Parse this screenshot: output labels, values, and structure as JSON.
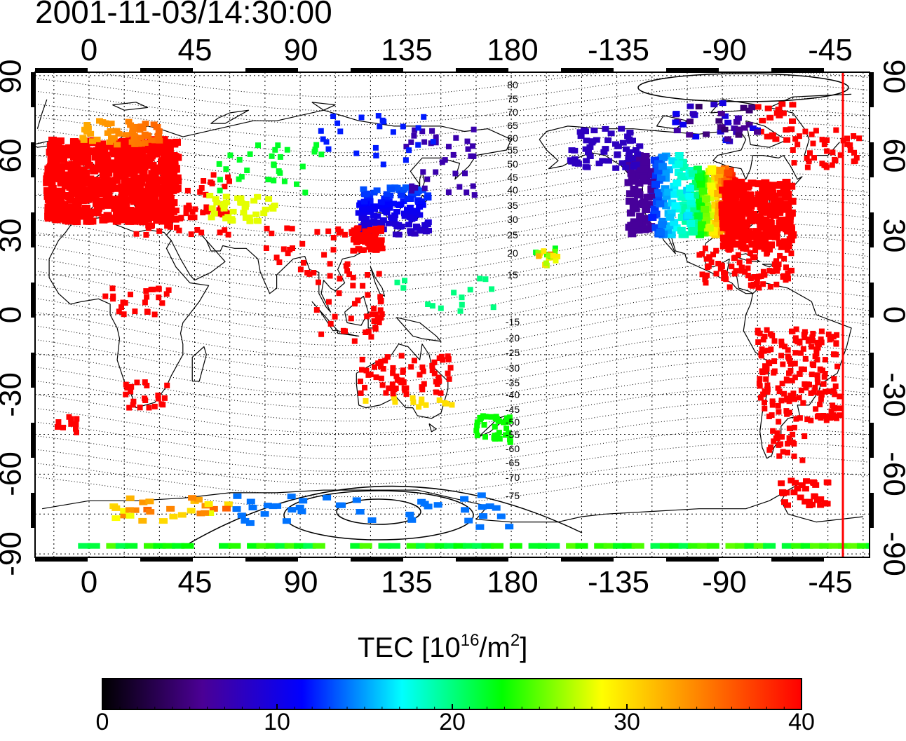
{
  "title": "2001-11-03/14:30:00",
  "lon_ticks": [
    "0",
    "45",
    "90",
    "135",
    "180",
    "-135",
    "-90",
    "-45"
  ],
  "lat_ticks": [
    "90",
    "60",
    "30",
    "0",
    "-30",
    "-60",
    "-90"
  ],
  "mlat_contour_labels": [
    "80",
    "75",
    "70",
    "65",
    "60",
    "55",
    "50",
    "45",
    "40",
    "35",
    "30",
    "25",
    "20",
    "15",
    "-15",
    "-20",
    "-25",
    "-30",
    "-35",
    "-40",
    "-45",
    "-50",
    "-55",
    "-60",
    "-65",
    "-70",
    "-75"
  ],
  "colorbar": {
    "title_main": "TEC  [10",
    "title_exp": "16",
    "title_unit": "/m",
    "title_unit_exp": "2",
    "title_close": "]",
    "ticks": [
      "0",
      "10",
      "20",
      "30",
      "40"
    ],
    "range": [
      0,
      40
    ],
    "colors": [
      "#000000",
      "#4b0095",
      "#0000ff",
      "#00ffff",
      "#00ff00",
      "#ffff00",
      "#ff8000",
      "#ff0000"
    ]
  },
  "terminator_color": "#ff0000",
  "regions": [
    {
      "name": "europe",
      "tec": 40
    },
    {
      "name": "north-america-east",
      "tec": 40
    },
    {
      "name": "north-america-west",
      "tec": 7
    },
    {
      "name": "japan",
      "tec": 12
    },
    {
      "name": "south-america",
      "tec": 40
    },
    {
      "name": "antarctica-coast",
      "tec": 23
    }
  ]
}
